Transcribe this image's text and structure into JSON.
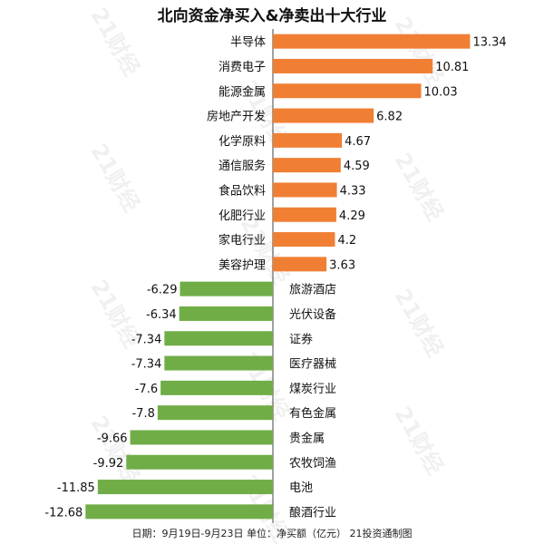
{
  "title": "北向资金净买入&净卖出十大行业",
  "footer": "日期：9月19日-9月23日 单位：净买额（亿元） 21投资通制图",
  "watermark": "21财经",
  "colors": {
    "positive": "#f07f34",
    "negative": "#70ad47",
    "axis": "#444444",
    "text": "#111111"
  },
  "chart_data": {
    "type": "bar",
    "orientation": "horizontal",
    "title": "北向资金净买入&净卖出十大行业",
    "xlabel": "",
    "ylabel": "",
    "grid": false,
    "categories": [
      "半导体",
      "消费电子",
      "能源金属",
      "房地产开发",
      "化学原料",
      "通信服务",
      "食品饮料",
      "化肥行业",
      "家电行业",
      "美容护理",
      "旅游酒店",
      "光伏设备",
      "证券",
      "医疗器械",
      "煤炭行业",
      "有色金属",
      "贵金属",
      "农牧饲渔",
      "电池",
      "酿酒行业"
    ],
    "values": [
      13.34,
      10.81,
      10.03,
      6.82,
      4.67,
      4.59,
      4.33,
      4.29,
      4.2,
      3.63,
      -6.29,
      -6.34,
      -7.34,
      -7.34,
      -7.6,
      -7.8,
      -9.66,
      -9.92,
      -11.85,
      -12.68
    ],
    "value_labels": [
      "13.34",
      "10.81",
      "10.03",
      "6.82",
      "4.67",
      "4.59",
      "4.33",
      "4.29",
      "4.2",
      "3.63",
      "-6.29",
      "-6.34",
      "-7.34",
      "-7.34",
      "-7.6",
      "-7.8",
      "-9.66",
      "-9.92",
      "-11.85",
      "-12.68"
    ]
  }
}
